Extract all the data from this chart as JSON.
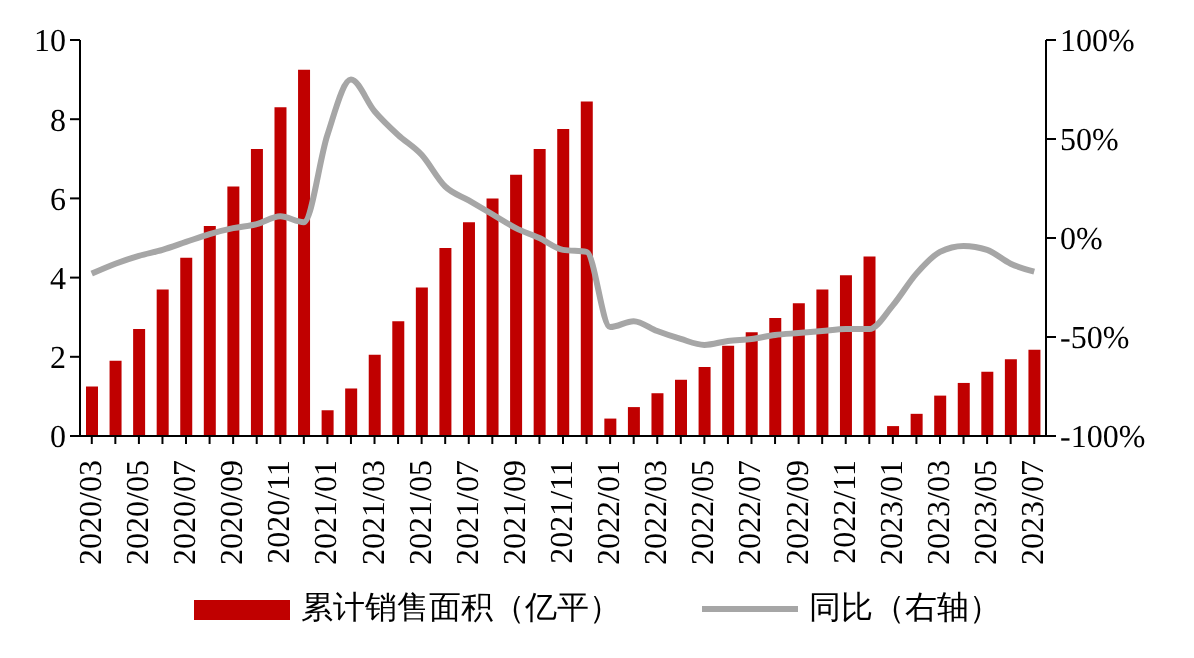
{
  "chart_data": {
    "type": "bar",
    "categories": [
      "2020/03",
      null,
      "2020/05",
      null,
      "2020/07",
      null,
      "2020/09",
      null,
      "2020/11",
      null,
      "2021/01",
      null,
      "2021/03",
      null,
      "2021/05",
      null,
      "2021/07",
      null,
      "2021/09",
      null,
      "2021/11",
      null,
      "2022/01",
      null,
      "2022/03",
      null,
      "2022/05",
      null,
      "2022/07",
      null,
      "2022/09",
      null,
      "2022/11",
      null,
      "2023/01",
      null,
      "2023/03",
      null,
      "2023/05",
      null,
      "2023/07"
    ],
    "series": [
      {
        "name": "累计销售面积（亿平）",
        "color": "#c00000",
        "values": [
          1.25,
          1.9,
          2.7,
          3.7,
          4.5,
          5.3,
          6.3,
          7.25,
          8.3,
          9.25,
          0.65,
          1.2,
          2.05,
          2.9,
          3.75,
          4.75,
          5.4,
          6.0,
          6.6,
          7.25,
          7.75,
          8.45,
          0.44,
          0.73,
          1.08,
          1.42,
          1.74,
          2.28,
          2.62,
          2.98,
          3.35,
          3.7,
          4.06,
          4.53,
          0.25,
          0.56,
          1.02,
          1.34,
          1.62,
          1.94,
          2.18
        ]
      },
      {
        "name": "同比（右轴）",
        "type": "line",
        "axis": "y2",
        "color": "#a6a6a6",
        "values": [
          -18,
          -13,
          -9,
          -6,
          -2,
          2,
          5,
          7,
          11,
          8,
          52,
          80,
          64,
          52,
          42,
          26,
          19,
          12,
          5,
          0,
          -6,
          -7,
          -45,
          -42,
          -47,
          -51,
          -54,
          -52,
          -51,
          -49,
          -48,
          -47,
          -46,
          -46,
          -34,
          -18,
          -7,
          -4,
          -6,
          -13,
          -17
        ]
      }
    ],
    "ylim": [
      0,
      10
    ],
    "yticks": [
      0,
      2,
      4,
      6,
      8,
      10
    ],
    "y2lim": [
      -100,
      100
    ],
    "y2ticks": [
      {
        "value": -100,
        "label": "-100%"
      },
      {
        "value": -50,
        "label": "-50%"
      },
      {
        "value": 0,
        "label": "0%"
      },
      {
        "value": 50,
        "label": "50%"
      },
      {
        "value": 100,
        "label": "100%"
      }
    ],
    "grid": false,
    "legend": "bottom",
    "marker": "none",
    "line_style": "solid"
  }
}
